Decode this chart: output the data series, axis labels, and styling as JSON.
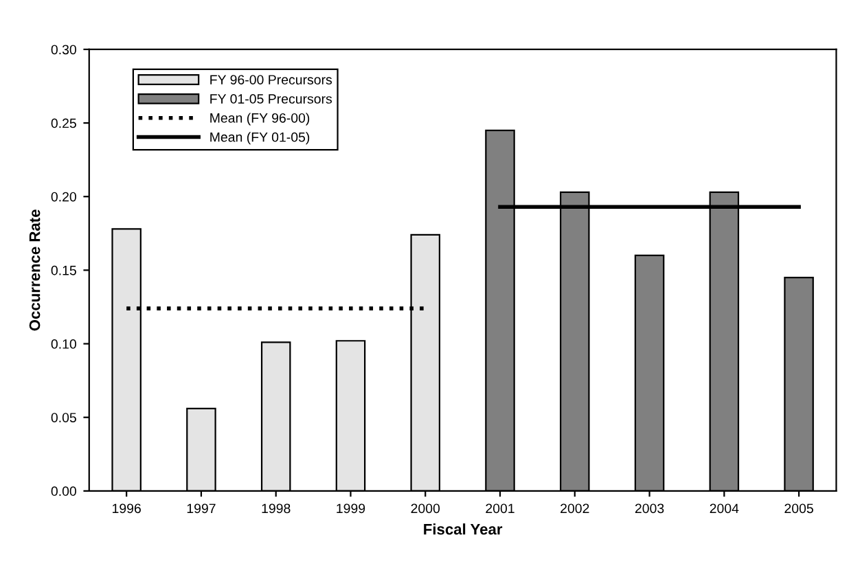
{
  "chart_data": {
    "type": "bar",
    "xlabel": "Fiscal Year",
    "ylabel": "Occurrence Rate",
    "categories": [
      "1996",
      "1997",
      "1998",
      "1999",
      "2000",
      "2001",
      "2002",
      "2003",
      "2004",
      "2005"
    ],
    "series": [
      {
        "name": "FY 96-00 Precursors",
        "color": "#e4e4e4",
        "values": [
          0.178,
          0.056,
          0.101,
          0.102,
          0.174,
          null,
          null,
          null,
          null,
          null
        ]
      },
      {
        "name": "FY 01-05 Precursors",
        "color": "#808080",
        "values": [
          null,
          null,
          null,
          null,
          null,
          0.245,
          0.203,
          0.16,
          0.203,
          0.145
        ]
      },
      {
        "name": "Mean (FY 96-00)",
        "type": "line",
        "color": "#000000",
        "line_style": "dotted",
        "values": [
          0.124,
          0.124,
          0.124,
          0.124,
          0.124,
          null,
          null,
          null,
          null,
          null
        ]
      },
      {
        "name": "Mean (FY 01-05)",
        "type": "line",
        "color": "#000000",
        "line_style": "solid",
        "values": [
          null,
          null,
          null,
          null,
          null,
          0.193,
          0.193,
          0.193,
          0.193,
          0.193
        ]
      }
    ],
    "ylim": [
      0,
      0.3
    ],
    "yticks": [
      {
        "value": 0,
        "label": "0.00"
      },
      {
        "value": 0.05,
        "label": "0.05"
      },
      {
        "value": 0.1,
        "label": "0.10"
      },
      {
        "value": 0.15,
        "label": "0.15"
      },
      {
        "value": 0.2,
        "label": "0.20"
      },
      {
        "value": 0.25,
        "label": "0.25"
      },
      {
        "value": 0.3,
        "label": "0.30"
      }
    ],
    "grid": false,
    "legend": "top left",
    "marker": "none"
  }
}
